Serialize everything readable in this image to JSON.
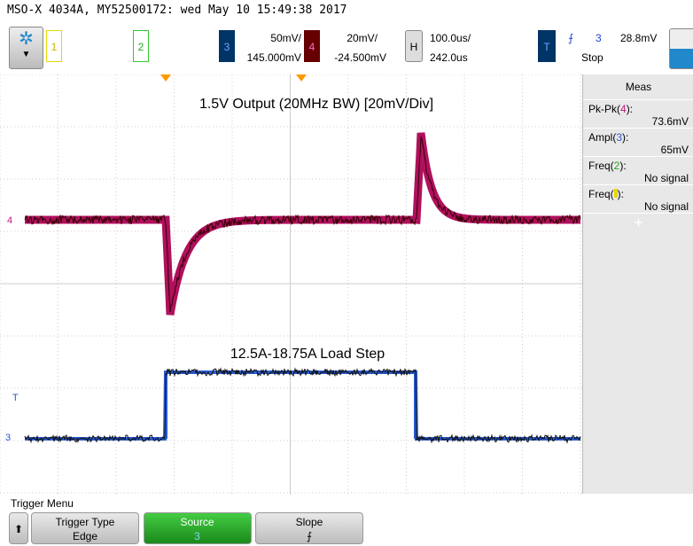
{
  "header": {
    "title": "MSO-X 4034A, MY52500172: wed May 10 15:49:38 2017"
  },
  "toolbar": {
    "ch1": "1",
    "ch2": "2",
    "ch3": {
      "label": "3",
      "scale": "50mV/",
      "offset": "145.000mV"
    },
    "ch4": {
      "label": "4",
      "scale": "20mV/",
      "offset": "-24.500mV"
    },
    "horizontal": {
      "label": "H",
      "scale": "100.0us/",
      "delay": "242.0us"
    },
    "trigger": {
      "label": "T",
      "source": "3",
      "level": "28.8mV",
      "state": "Stop"
    }
  },
  "screen": {
    "annotations": [
      "1.5V Output (20MHz BW) [20mV/Div]",
      "12.5A-18.75A Load Step"
    ],
    "markers": {
      "ch4": "4",
      "ch3": "3",
      "trigger": "T"
    }
  },
  "meas": {
    "title": "Meas",
    "items": [
      {
        "prefix": "Pk-Pk(",
        "channel": "4",
        "suffix": "):",
        "value": "73.6mV"
      },
      {
        "prefix": "Ampl(",
        "channel": "3",
        "suffix": "):",
        "value": "65mV"
      },
      {
        "prefix": "Freq(",
        "channel": "2",
        "suffix": "):",
        "value": "No signal"
      },
      {
        "prefix": "Freq(",
        "suffix": "):",
        "value": "No signal"
      }
    ]
  },
  "menu": {
    "title": "Trigger Menu",
    "buttons": [
      {
        "label": "Trigger Type",
        "value": "Edge"
      },
      {
        "label": "Source",
        "value": "3"
      },
      {
        "label": "Slope",
        "value": "⨍"
      }
    ]
  }
}
